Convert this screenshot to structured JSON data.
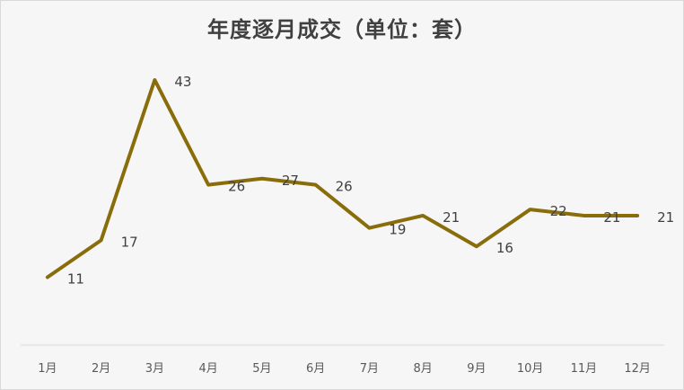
{
  "chart_data": {
    "type": "line",
    "title": "年度逐月成交（单位：套）",
    "categories": [
      "1月",
      "2月",
      "3月",
      "4月",
      "5月",
      "6月",
      "7月",
      "8月",
      "9月",
      "10月",
      "11月",
      "12月"
    ],
    "series": [
      {
        "values": [
          11,
          17,
          43,
          26,
          27,
          26,
          19,
          21,
          16,
          22,
          21,
          21
        ],
        "color": "#8a6d0b"
      }
    ],
    "xlabel": "",
    "ylabel": "",
    "ylim": [
      0,
      50
    ],
    "grid": false,
    "legend": "none",
    "background": "#f6f6f6"
  }
}
